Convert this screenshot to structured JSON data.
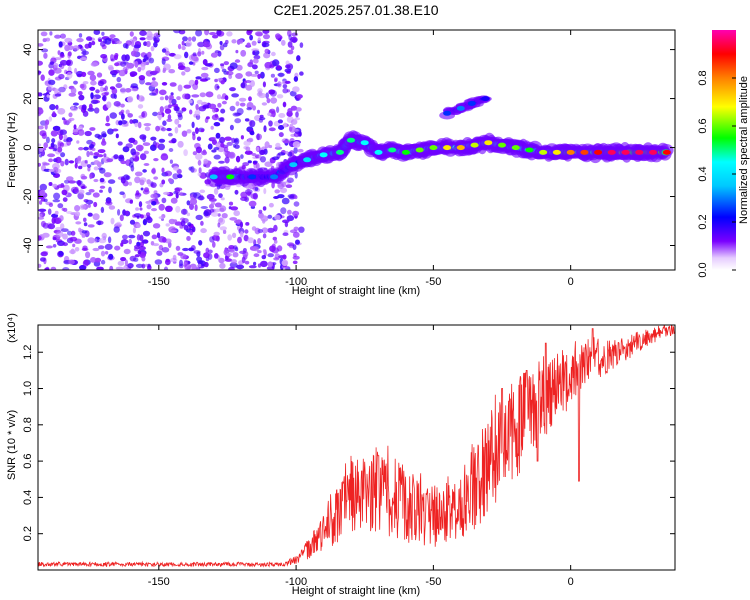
{
  "title": "C2E1.2025.257.01.38.E10",
  "chart_data": [
    {
      "type": "heatmap",
      "id": "spectrogram",
      "xlabel": "Height of straight line (km)",
      "ylabel": "Frequency (Hz)",
      "xlim": [
        -194,
        38
      ],
      "ylim": [
        -50,
        48
      ],
      "xticks": [
        -150,
        -100,
        -50,
        0
      ],
      "xtick_labels": [
        "-150",
        "-100",
        "-50",
        "0"
      ],
      "yticks": [
        -40,
        -20,
        0,
        20,
        40
      ],
      "ytick_labels": [
        "-40",
        "-20",
        "0",
        "20",
        "40"
      ],
      "noise_region_x": [
        -194,
        -100
      ],
      "ridge": [
        {
          "x": -130,
          "y": -12,
          "amp": 0.35
        },
        {
          "x": -124,
          "y": -12,
          "amp": 0.55
        },
        {
          "x": -116,
          "y": -12,
          "amp": 0.25
        },
        {
          "x": -108,
          "y": -12,
          "amp": 0.3
        },
        {
          "x": -101,
          "y": -7,
          "amp": 0.35
        },
        {
          "x": -96,
          "y": -5,
          "amp": 0.4
        },
        {
          "x": -90,
          "y": -3,
          "amp": 0.45
        },
        {
          "x": -84,
          "y": -2,
          "amp": 0.5
        },
        {
          "x": -80,
          "y": 3,
          "amp": 0.5
        },
        {
          "x": -75,
          "y": 2,
          "amp": 0.45
        },
        {
          "x": -70,
          "y": -2,
          "amp": 0.45
        },
        {
          "x": -65,
          "y": -1,
          "amp": 0.5
        },
        {
          "x": -60,
          "y": -2,
          "amp": 0.55
        },
        {
          "x": -55,
          "y": -1,
          "amp": 0.6
        },
        {
          "x": -50,
          "y": 0,
          "amp": 0.6
        },
        {
          "x": -45,
          "y": 0,
          "amp": 0.7
        },
        {
          "x": -40,
          "y": 0,
          "amp": 0.75
        },
        {
          "x": -35,
          "y": 1,
          "amp": 0.65
        },
        {
          "x": -30,
          "y": 2,
          "amp": 0.7
        },
        {
          "x": -25,
          "y": 1,
          "amp": 0.6
        },
        {
          "x": -20,
          "y": 0,
          "amp": 0.6
        },
        {
          "x": -15,
          "y": -1,
          "amp": 0.55
        },
        {
          "x": -10,
          "y": -2,
          "amp": 0.65
        },
        {
          "x": -5,
          "y": -2,
          "amp": 0.7
        },
        {
          "x": 0,
          "y": -2,
          "amp": 0.8
        },
        {
          "x": 5,
          "y": -2,
          "amp": 0.85
        },
        {
          "x": 10,
          "y": -2,
          "amp": 0.9
        },
        {
          "x": 15,
          "y": -2,
          "amp": 0.95
        },
        {
          "x": 20,
          "y": -2,
          "amp": 0.95
        },
        {
          "x": 25,
          "y": -2,
          "amp": 0.95
        },
        {
          "x": 30,
          "y": -2,
          "amp": 0.95
        },
        {
          "x": 35,
          "y": -2,
          "amp": 0.9
        }
      ],
      "secondary_branch": [
        {
          "x": -45,
          "y": 14,
          "amp": 0.25
        },
        {
          "x": -40,
          "y": 16,
          "amp": 0.3
        },
        {
          "x": -36,
          "y": 18,
          "amp": 0.25
        },
        {
          "x": -31,
          "y": 20,
          "amp": 0.2
        }
      ]
    },
    {
      "type": "colorbar",
      "id": "colorbar",
      "label": "Normalized spectral amplitude",
      "range": [
        0,
        1
      ],
      "ticks": [
        0.0,
        0.2,
        0.4,
        0.6,
        0.8
      ],
      "tick_labels": [
        "0.0",
        "0.2",
        "0.4",
        "0.6",
        "0.8"
      ],
      "colors": [
        "#ffffff",
        "#7a00ff",
        "#0000ff",
        "#00ffff",
        "#00ff00",
        "#ffff00",
        "#ff8000",
        "#ff0000",
        "#ff00b0"
      ]
    },
    {
      "type": "line",
      "id": "snr",
      "xlabel": "Height of straight line (km)",
      "ylabel": "SNR (10 * v/v)",
      "yunit": "(x10⁴)",
      "xlim": [
        -194,
        38
      ],
      "ylim": [
        0,
        1.35
      ],
      "xticks": [
        -150,
        -100,
        -50,
        0
      ],
      "xtick_labels": [
        "-150",
        "-100",
        "-50",
        "0"
      ],
      "yticks": [
        0.2,
        0.4,
        0.6,
        0.8,
        1.0,
        1.2
      ],
      "ytick_labels": [
        "0.2",
        "0.4",
        "0.6",
        "0.8",
        "1.0",
        "1.2"
      ],
      "color": "#ee2222",
      "envelope": [
        {
          "x": -194,
          "base": 0.02,
          "spread": 0.02
        },
        {
          "x": -105,
          "base": 0.02,
          "spread": 0.02
        },
        {
          "x": -100,
          "base": 0.03,
          "spread": 0.04
        },
        {
          "x": -90,
          "base": 0.1,
          "spread": 0.2
        },
        {
          "x": -80,
          "base": 0.2,
          "spread": 0.4
        },
        {
          "x": -70,
          "base": 0.2,
          "spread": 0.45
        },
        {
          "x": -60,
          "base": 0.15,
          "spread": 0.4
        },
        {
          "x": -50,
          "base": 0.12,
          "spread": 0.3
        },
        {
          "x": -40,
          "base": 0.15,
          "spread": 0.35
        },
        {
          "x": -30,
          "base": 0.3,
          "spread": 0.5
        },
        {
          "x": -20,
          "base": 0.5,
          "spread": 0.6
        },
        {
          "x": -10,
          "base": 0.7,
          "spread": 0.4
        },
        {
          "x": 0,
          "base": 0.9,
          "spread": 0.3
        },
        {
          "x": 10,
          "base": 1.05,
          "spread": 0.2
        },
        {
          "x": 20,
          "base": 1.15,
          "spread": 0.12
        },
        {
          "x": 30,
          "base": 1.25,
          "spread": 0.08
        },
        {
          "x": 38,
          "base": 1.3,
          "spread": 0.05
        }
      ],
      "peaks": [
        {
          "x": -70,
          "y": 0.63
        },
        {
          "x": -25,
          "y": 1.0
        },
        {
          "x": -16,
          "y": 1.1
        },
        {
          "x": -9,
          "y": 1.25
        },
        {
          "x": 8,
          "y": 1.33
        }
      ],
      "dips": [
        {
          "x": 3,
          "y": 0.49
        },
        {
          "x": -12,
          "y": 0.6
        }
      ]
    }
  ]
}
